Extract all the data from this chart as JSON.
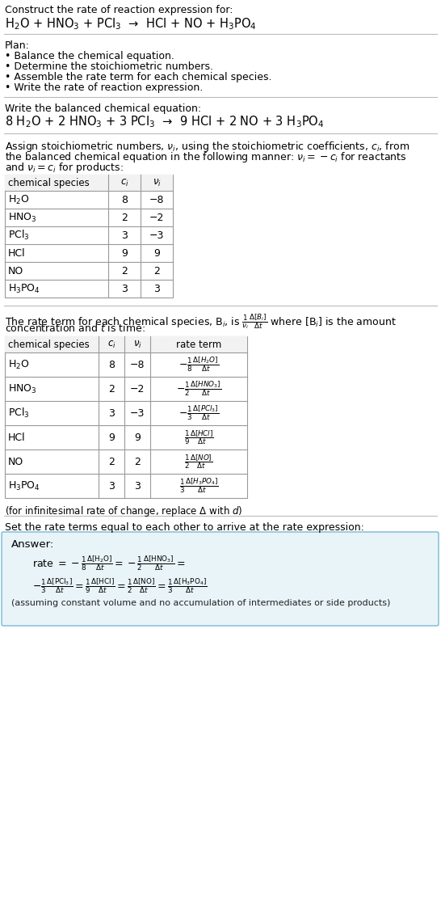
{
  "bg_color": "#ffffff",
  "text_color": "#000000",
  "title_text": "Construct the rate of reaction expression for:",
  "reaction_unbalanced": "H$_2$O + HNO$_3$ + PCl$_3$  →  HCl + NO + H$_3$PO$_4$",
  "plan_header": "Plan:",
  "plan_items": [
    "• Balance the chemical equation.",
    "• Determine the stoichiometric numbers.",
    "• Assemble the rate term for each chemical species.",
    "• Write the rate of reaction expression."
  ],
  "balanced_header": "Write the balanced chemical equation:",
  "reaction_balanced": "8 H$_2$O + 2 HNO$_3$ + 3 PCl$_3$  →  9 HCl + 2 NO + 3 H$_3$PO$_4$",
  "stoich_header_parts": [
    "Assign stoichiometric numbers, $\\nu_i$, using the stoichiometric coefficients, $c_i$, from",
    "the balanced chemical equation in the following manner: $\\nu_i = -c_i$ for reactants",
    "and $\\nu_i = c_i$ for products:"
  ],
  "table1_cols": [
    "chemical species",
    "$c_i$",
    "$\\nu_i$"
  ],
  "table1_rows": [
    [
      "H$_2$O",
      "8",
      "−8"
    ],
    [
      "HNO$_3$",
      "2",
      "−2"
    ],
    [
      "PCl$_3$",
      "3",
      "−3"
    ],
    [
      "HCl",
      "9",
      "9"
    ],
    [
      "NO",
      "2",
      "2"
    ],
    [
      "H$_3$PO$_4$",
      "3",
      "3"
    ]
  ],
  "rate_header_parts": [
    "The rate term for each chemical species, B$_i$, is $\\frac{1}{\\nu_i}\\frac{\\Delta[B_i]}{\\Delta t}$ where [B$_i$] is the amount",
    "concentration and $t$ is time:"
  ],
  "table2_cols": [
    "chemical species",
    "$c_i$",
    "$\\nu_i$",
    "rate term"
  ],
  "table2_rows": [
    [
      "H$_2$O",
      "8",
      "−8",
      "$-\\frac{1}{8}\\frac{\\Delta[H_2O]}{\\Delta t}$"
    ],
    [
      "HNO$_3$",
      "2",
      "−2",
      "$-\\frac{1}{2}\\frac{\\Delta[HNO_3]}{\\Delta t}$"
    ],
    [
      "PCl$_3$",
      "3",
      "−3",
      "$-\\frac{1}{3}\\frac{\\Delta[PCl_3]}{\\Delta t}$"
    ],
    [
      "HCl",
      "9",
      "9",
      "$\\frac{1}{9}\\frac{\\Delta[HCl]}{\\Delta t}$"
    ],
    [
      "NO",
      "2",
      "2",
      "$\\frac{1}{2}\\frac{\\Delta[NO]}{\\Delta t}$"
    ],
    [
      "H$_3$PO$_4$",
      "3",
      "3",
      "$\\frac{1}{3}\\frac{\\Delta[H_3PO_4]}{\\Delta t}$"
    ]
  ],
  "infinitesimal_note": "(for infinitesimal rate of change, replace Δ with $d$)",
  "set_rate_text": "Set the rate terms equal to each other to arrive at the rate expression:",
  "answer_label": "Answer:",
  "answer_note": "(assuming constant volume and no accumulation of intermediates or side products)",
  "line_color": "#bbbbbb",
  "table_border_color": "#999999",
  "table_header_bg": "#f2f2f2",
  "answer_box_bg": "#e8f4f8",
  "answer_box_border": "#7ab8d4"
}
